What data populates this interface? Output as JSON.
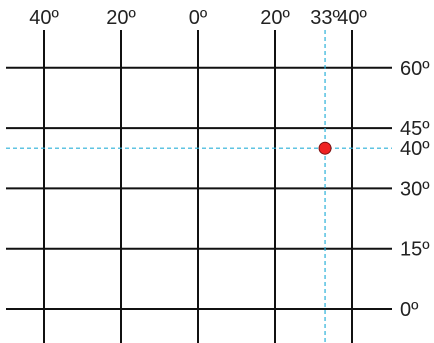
{
  "grid": {
    "meridians": [
      {
        "label": "40º",
        "longitude": -40
      },
      {
        "label": "20º",
        "longitude": -20
      },
      {
        "label": "0º",
        "longitude": 0
      },
      {
        "label": "20º",
        "longitude": 20
      },
      {
        "label": "40º",
        "longitude": 40
      }
    ],
    "parallels": [
      {
        "label": "60º",
        "latitude": 60
      },
      {
        "label": "45º",
        "latitude": 45
      },
      {
        "label": "30º",
        "latitude": 30
      },
      {
        "label": "15º",
        "latitude": 15
      },
      {
        "label": "0º",
        "latitude": 0
      }
    ]
  },
  "highlight": {
    "longitude": 33,
    "latitude": 40,
    "longitude_label": "33º",
    "latitude_label": "40º",
    "point_color": "#ee2222",
    "guide_color": "#2ab0d8"
  },
  "colors": {
    "grid_line": "#111111",
    "background": "#ffffff"
  }
}
